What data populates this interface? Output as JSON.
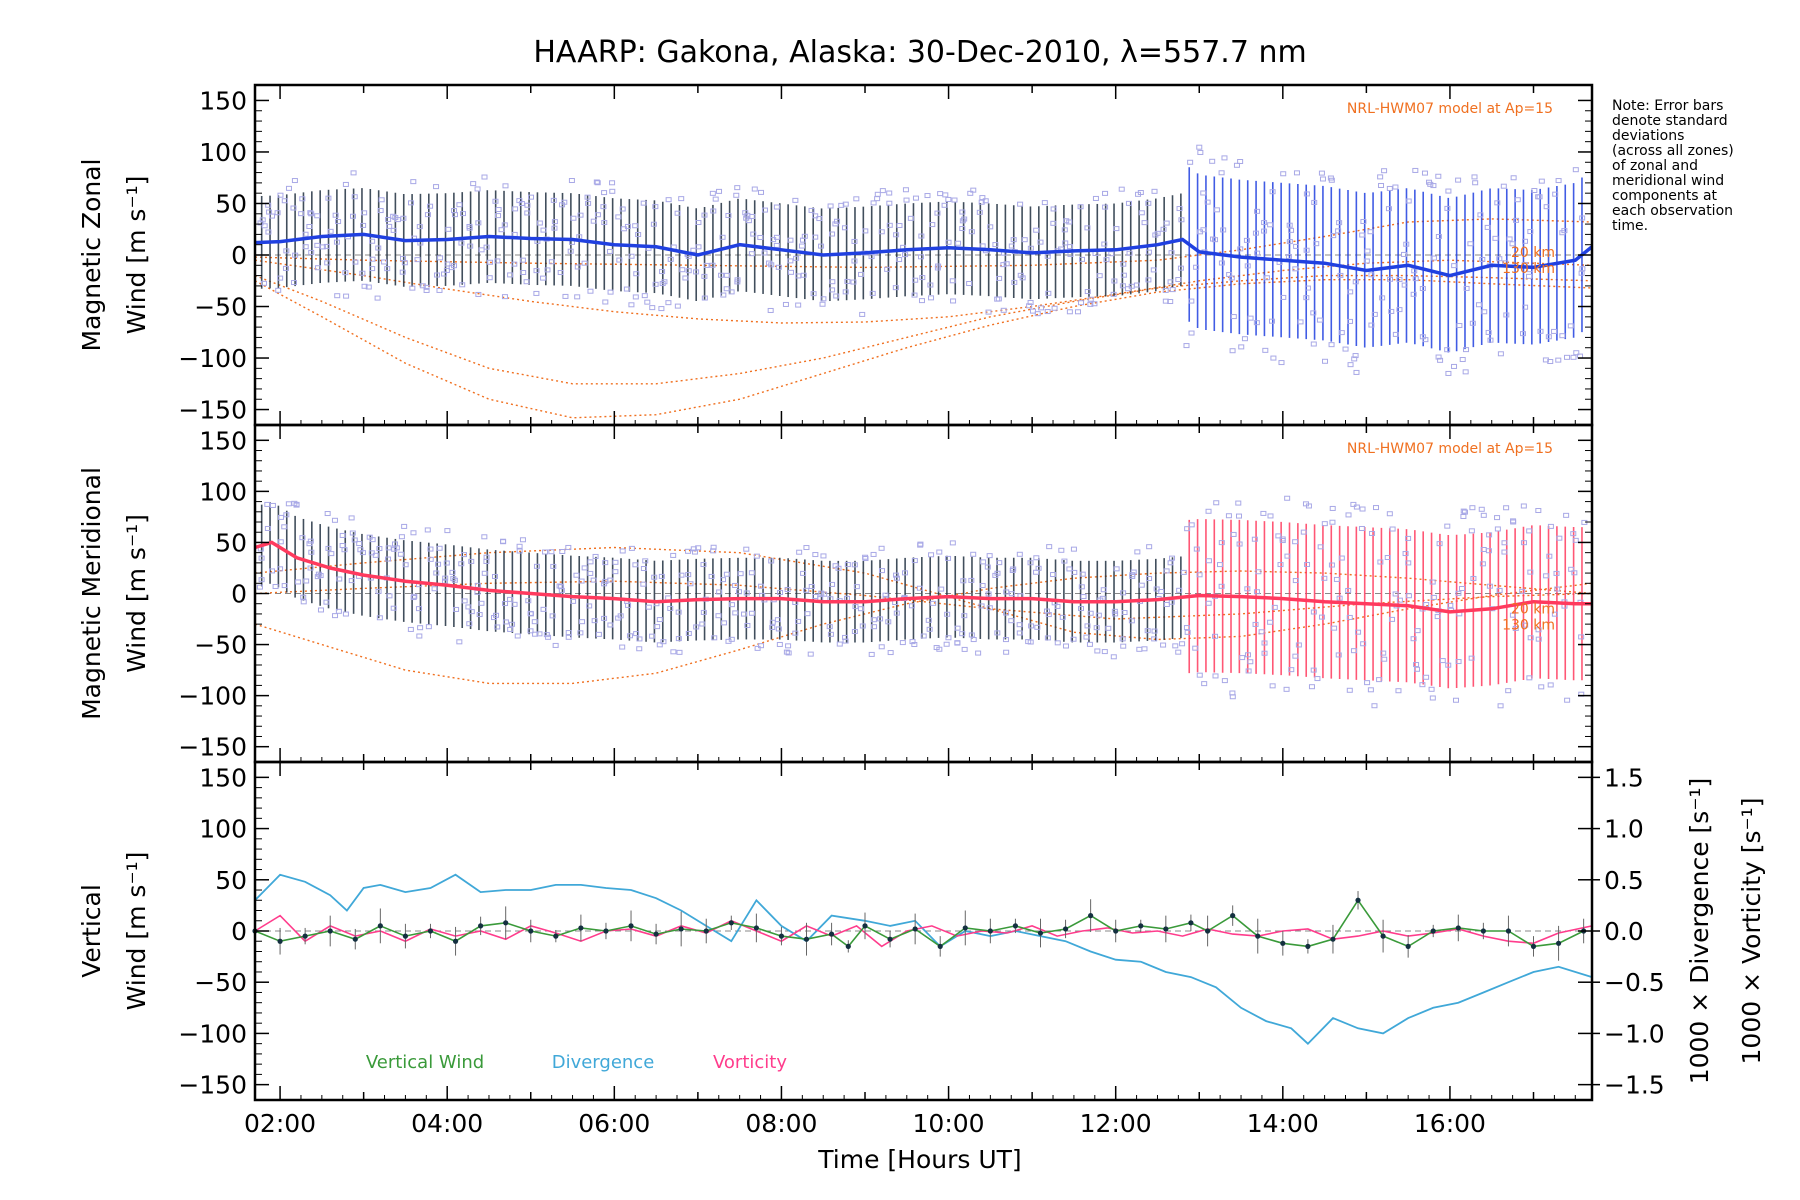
{
  "chart_data": {
    "title": "HAARP: Gakona,  Alaska: 30-Dec-2010, λ=557.7 nm",
    "note": [
      "Note: Error bars",
      "denote standard",
      "deviations",
      "(across all zones)",
      "of zonal and",
      "meridional wind",
      "components at",
      "each observation",
      "time."
    ],
    "xlabel": "Time [Hours UT]",
    "x_ticks": [
      "02:00",
      "04:00",
      "06:00",
      "08:00",
      "10:00",
      "12:00",
      "14:00",
      "16:00"
    ],
    "x_tick_values": [
      2,
      4,
      6,
      8,
      10,
      12,
      14,
      16
    ],
    "xlim": [
      1.7,
      17.7
    ],
    "colors": {
      "zonal": "#2040e0",
      "meridional": "#ff3a5e",
      "model": "#f07020",
      "scatter": "#a8a8e6",
      "vertical": "#3a9a3a",
      "divergence": "#40a8d8",
      "vorticity": "#ff3c8c"
    },
    "panels": [
      {
        "type": "line",
        "ylabel_lines": [
          "Magnetic Zonal",
          "Wind [m s⁻¹]"
        ],
        "ylim": [
          -165,
          165
        ],
        "y_ticks": [
          "150",
          "100",
          "50",
          "0",
          "−50",
          "−100",
          "−150"
        ],
        "y_tick_values": [
          150,
          100,
          50,
          0,
          -50,
          -100,
          -150
        ],
        "model_label": "NRL-HWM07 model at Ap=15",
        "model_alt_labels": [
          "20 km",
          "130 km"
        ],
        "series": [
          {
            "name": "Magnetic Zonal Wind",
            "x": [
              1.7,
              2.0,
              2.5,
              3.0,
              3.5,
              4.0,
              4.5,
              5.0,
              5.5,
              6.0,
              6.5,
              7.0,
              7.5,
              8.0,
              8.5,
              9.0,
              9.5,
              10.0,
              10.5,
              11.0,
              11.5,
              12.0,
              12.5,
              12.8,
              13.0,
              13.5,
              14.0,
              14.5,
              15.0,
              15.5,
              16.0,
              16.5,
              17.0,
              17.5,
              17.7
            ],
            "y": [
              12,
              13,
              18,
              20,
              14,
              15,
              18,
              16,
              15,
              10,
              8,
              0,
              10,
              5,
              0,
              2,
              5,
              7,
              5,
              2,
              4,
              5,
              10,
              15,
              3,
              -2,
              -5,
              -8,
              -15,
              -10,
              -20,
              -10,
              -12,
              -5,
              8
            ]
          }
        ],
        "error_half_width": 45,
        "error_half_width_late": 75,
        "model_curves": [
          {
            "x": [
              1.7,
              2.5,
              3.5,
              4.5,
              5.5,
              6.5,
              7.5,
              8.5,
              9.5,
              10.5,
              11.5,
              12.5,
              13.5,
              14.5,
              15.5,
              16.5,
              17.7
            ],
            "y": [
              -20,
              -45,
              -80,
              -110,
              -125,
              -125,
              -115,
              -100,
              -80,
              -60,
              -45,
              -32,
              -25,
              -20,
              -20,
              -22,
              -25
            ]
          },
          {
            "x": [
              1.7,
              2.5,
              3.5,
              4.5,
              5.5,
              6.5,
              7.5,
              8.5,
              9.5,
              10.5,
              11.5,
              12.5,
              13.5,
              14.5,
              15.5,
              16.5,
              17.7
            ],
            "y": [
              -25,
              -60,
              -105,
              -140,
              -158,
              -155,
              -140,
              -115,
              -90,
              -68,
              -50,
              -36,
              -28,
              -24,
              -24,
              -28,
              -32
            ]
          },
          {
            "x": [
              1.7,
              3,
              4,
              5,
              6,
              7,
              8,
              9,
              10,
              11,
              12,
              13,
              14,
              15,
              16,
              17,
              17.7
            ],
            "y": [
              -5,
              -20,
              -33,
              -45,
              -55,
              -62,
              -66,
              -65,
              -60,
              -50,
              -38,
              -25,
              -15,
              -8,
              -5,
              -8,
              -10
            ]
          },
          {
            "x": [
              1.7,
              3,
              5,
              7,
              9,
              11,
              12.5,
              13.5,
              14.5,
              15.5,
              16.5,
              17.7
            ],
            "y": [
              -2,
              -5,
              -8,
              -10,
              -12,
              -10,
              -5,
              5,
              18,
              32,
              35,
              32
            ]
          }
        ]
      },
      {
        "type": "line",
        "ylabel_lines": [
          "Magnetic Meridional",
          "Wind [m s⁻¹]"
        ],
        "ylim": [
          -165,
          165
        ],
        "y_ticks": [
          "150",
          "100",
          "50",
          "0",
          "−50",
          "−100",
          "−150"
        ],
        "y_tick_values": [
          150,
          100,
          50,
          0,
          -50,
          -100,
          -150
        ],
        "model_label": "NRL-HWM07 model at Ap=15",
        "model_alt_labels": [
          "20 km",
          "130 km"
        ],
        "series": [
          {
            "name": "Magnetic Meridional Wind",
            "x": [
              1.7,
              1.9,
              2.2,
              2.6,
              3.0,
              3.5,
              4.0,
              4.5,
              5.0,
              5.5,
              6.0,
              6.5,
              7.0,
              7.5,
              8.0,
              8.5,
              9.0,
              9.5,
              10.0,
              10.5,
              11.0,
              11.5,
              12.0,
              12.5,
              13.0,
              13.5,
              14.0,
              14.5,
              15.0,
              15.5,
              16.0,
              16.5,
              17.0,
              17.5,
              17.7
            ],
            "y": [
              45,
              50,
              35,
              25,
              18,
              12,
              8,
              3,
              0,
              -3,
              -5,
              -8,
              -6,
              -5,
              -5,
              -8,
              -8,
              -5,
              -3,
              -5,
              -5,
              -8,
              -8,
              -6,
              -2,
              -3,
              -5,
              -8,
              -10,
              -12,
              -18,
              -15,
              -8,
              -10,
              -10
            ]
          }
        ],
        "error_half_width": 40,
        "error_half_width_late": 75,
        "model_curves": [
          {
            "x": [
              1.7,
              2.5,
              3.5,
              4.5,
              5.5,
              6.5,
              7.5,
              8.5,
              9.5,
              10.5,
              11.5,
              12.5,
              13.5,
              14.5,
              15.5,
              16.5,
              17.7
            ],
            "y": [
              -30,
              -50,
              -75,
              -88,
              -88,
              -78,
              -55,
              -30,
              -10,
              5,
              15,
              20,
              22,
              20,
              15,
              8,
              0
            ]
          },
          {
            "x": [
              1.7,
              3,
              4.5,
              6,
              7.5,
              9,
              10.5,
              11.5,
              12.5,
              13.5,
              14.5,
              15.5,
              16.5,
              17.7
            ],
            "y": [
              20,
              30,
              40,
              45,
              40,
              20,
              -15,
              -38,
              -45,
              -42,
              -30,
              -15,
              -2,
              10
            ]
          },
          {
            "x": [
              1.7,
              3,
              4.5,
              6,
              7.5,
              9,
              10.5,
              12,
              13.5,
              15,
              16.5,
              17.7
            ],
            "y": [
              0,
              5,
              10,
              12,
              8,
              -2,
              -15,
              -25,
              -20,
              -10,
              -3,
              0
            ]
          }
        ]
      },
      {
        "type": "line",
        "ylabel_lines": [
          "Vertical",
          "Wind [m s⁻¹]"
        ],
        "y2label_lines": [
          "1000 × Divergence [s⁻¹]",
          "1000 × Vorticity [s⁻¹]"
        ],
        "ylim": [
          -165,
          165
        ],
        "y_ticks": [
          "150",
          "100",
          "50",
          "0",
          "−50",
          "−100",
          "−150"
        ],
        "y_tick_values": [
          150,
          100,
          50,
          0,
          -50,
          -100,
          -150
        ],
        "y2lim": [
          -1.65,
          1.65
        ],
        "y2_ticks": [
          "1.5",
          "1.0",
          "0.5",
          "0.0",
          "−0.5",
          "−1.0",
          "−1.5"
        ],
        "y2_tick_values": [
          1.5,
          1.0,
          0.5,
          0.0,
          -0.5,
          -1.0,
          -1.5
        ],
        "legend": [
          "Vertical Wind",
          "Divergence",
          "Vorticity"
        ],
        "series": [
          {
            "name": "Vertical Wind",
            "axis": "left",
            "x": [
              1.7,
              2.0,
              2.3,
              2.6,
              2.9,
              3.2,
              3.5,
              3.8,
              4.1,
              4.4,
              4.7,
              5.0,
              5.3,
              5.6,
              5.9,
              6.2,
              6.5,
              6.8,
              7.1,
              7.4,
              7.7,
              8.0,
              8.3,
              8.6,
              8.8,
              9.0,
              9.3,
              9.6,
              9.9,
              10.2,
              10.5,
              10.8,
              11.1,
              11.4,
              11.7,
              12.0,
              12.3,
              12.6,
              12.9,
              13.1,
              13.4,
              13.7,
              14.0,
              14.3,
              14.6,
              14.9,
              15.2,
              15.5,
              15.8,
              16.1,
              16.4,
              16.7,
              17.0,
              17.3,
              17.6
            ],
            "y": [
              0,
              -10,
              -5,
              0,
              -8,
              5,
              -5,
              0,
              -10,
              5,
              8,
              0,
              -5,
              3,
              0,
              5,
              -3,
              2,
              0,
              8,
              3,
              -5,
              -8,
              -3,
              -15,
              5,
              -8,
              2,
              -15,
              3,
              0,
              5,
              -2,
              2,
              15,
              0,
              5,
              2,
              8,
              0,
              15,
              -5,
              -12,
              -15,
              -8,
              30,
              -5,
              -15,
              0,
              3,
              0,
              0,
              -15,
              -12,
              0
            ]
          },
          {
            "name": "Divergence",
            "axis": "right",
            "x": [
              1.7,
              2.0,
              2.3,
              2.6,
              2.8,
              3.0,
              3.2,
              3.5,
              3.8,
              4.1,
              4.4,
              4.7,
              5.0,
              5.3,
              5.6,
              5.9,
              6.2,
              6.5,
              6.8,
              7.1,
              7.4,
              7.7,
              8.0,
              8.3,
              8.6,
              9.0,
              9.3,
              9.6,
              9.9,
              10.2,
              10.5,
              10.8,
              11.1,
              11.4,
              11.7,
              12.0,
              12.3,
              12.6,
              12.9,
              13.2,
              13.5,
              13.8,
              14.1,
              14.3,
              14.6,
              14.9,
              15.2,
              15.5,
              15.8,
              16.1,
              16.4,
              16.7,
              17.0,
              17.3,
              17.7
            ],
            "y": [
              0.3,
              0.55,
              0.48,
              0.35,
              0.2,
              0.42,
              0.45,
              0.38,
              0.42,
              0.55,
              0.38,
              0.4,
              0.4,
              0.45,
              0.45,
              0.42,
              0.4,
              0.32,
              0.2,
              0.05,
              -0.1,
              0.3,
              0.05,
              -0.1,
              0.15,
              0.1,
              0.05,
              0.1,
              -0.15,
              0.0,
              -0.05,
              0.0,
              -0.05,
              -0.1,
              -0.2,
              -0.28,
              -0.3,
              -0.4,
              -0.45,
              -0.55,
              -0.75,
              -0.88,
              -0.95,
              -1.1,
              -0.85,
              -0.95,
              -1.0,
              -0.85,
              -0.75,
              -0.7,
              -0.6,
              -0.5,
              -0.4,
              -0.35,
              -0.45
            ]
          },
          {
            "name": "Vorticity",
            "axis": "right",
            "x": [
              1.7,
              2.0,
              2.3,
              2.6,
              2.9,
              3.2,
              3.5,
              3.8,
              4.1,
              4.4,
              4.7,
              5.0,
              5.3,
              5.6,
              5.9,
              6.2,
              6.5,
              6.8,
              7.1,
              7.4,
              7.7,
              8.0,
              8.3,
              8.6,
              8.9,
              9.2,
              9.5,
              9.8,
              10.1,
              10.4,
              10.7,
              11.0,
              11.3,
              11.6,
              11.9,
              12.2,
              12.5,
              12.8,
              13.1,
              13.4,
              13.7,
              14.0,
              14.3,
              14.6,
              14.9,
              15.2,
              15.5,
              15.8,
              16.1,
              16.4,
              16.7,
              17.0,
              17.3,
              17.7
            ],
            "y": [
              0.0,
              0.15,
              -0.1,
              0.05,
              -0.05,
              0.0,
              -0.1,
              0.02,
              -0.05,
              0.0,
              -0.08,
              0.05,
              -0.02,
              -0.1,
              0.0,
              0.02,
              -0.05,
              0.05,
              -0.02,
              0.1,
              0.0,
              -0.1,
              0.05,
              -0.05,
              0.05,
              -0.15,
              0.0,
              0.05,
              -0.05,
              0.0,
              -0.02,
              0.05,
              -0.05,
              0.0,
              0.03,
              -0.02,
              0.0,
              -0.05,
              0.02,
              -0.03,
              -0.05,
              0.0,
              0.02,
              -0.08,
              -0.05,
              0.0,
              -0.05,
              -0.02,
              0.02,
              -0.05,
              -0.1,
              -0.12,
              -0.02,
              0.05
            ]
          }
        ]
      }
    ]
  }
}
